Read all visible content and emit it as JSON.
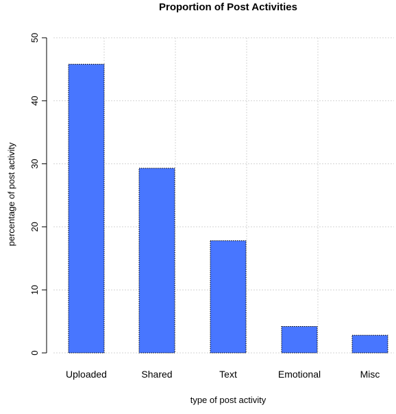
{
  "chart_data": {
    "type": "bar",
    "title": "Proportion of Post Activities",
    "xlabel": "type of post activity",
    "ylabel": "percentage of post activity",
    "categories": [
      "Uploaded",
      "Shared",
      "Text",
      "Emotional",
      "Misc"
    ],
    "values": [
      45.8,
      29.3,
      17.8,
      4.2,
      2.8
    ],
    "ylim": [
      0,
      50
    ],
    "yticks": [
      0,
      10,
      20,
      30,
      40,
      50
    ],
    "grid": true,
    "bar_color": "#4876FF",
    "legend": "none"
  }
}
